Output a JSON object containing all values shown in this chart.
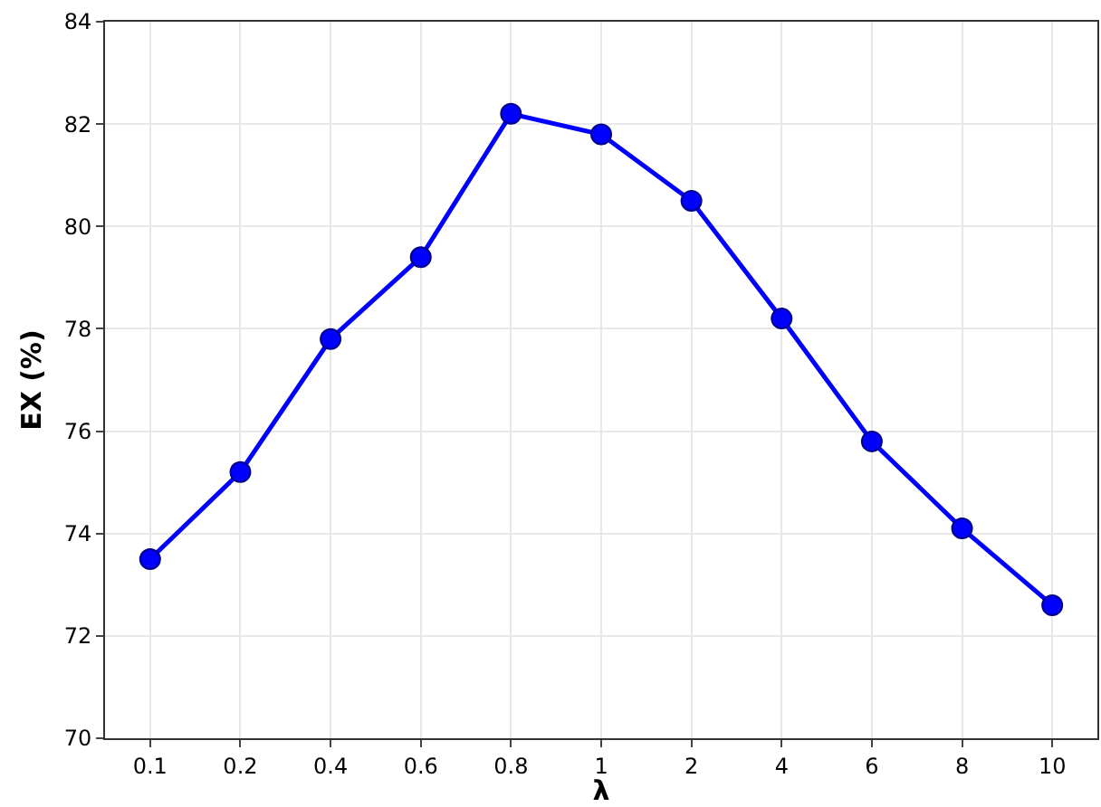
{
  "chart_data": {
    "type": "line",
    "xlabel": "λ",
    "ylabel": "EX (%)",
    "categories": [
      "0.1",
      "0.2",
      "0.4",
      "0.6",
      "0.8",
      "1",
      "2",
      "4",
      "6",
      "8",
      "10"
    ],
    "series": [
      {
        "color": "#0000ff",
        "values": [
          73.5,
          75.2,
          77.8,
          79.4,
          82.2,
          81.8,
          80.5,
          78.2,
          75.8,
          74.1,
          72.6
        ]
      }
    ],
    "ylim": [
      70,
      84
    ],
    "yticks": [
      70,
      72,
      74,
      76,
      78,
      80,
      82,
      84
    ],
    "grid": true,
    "marker": "circle",
    "line_style": "solid"
  }
}
